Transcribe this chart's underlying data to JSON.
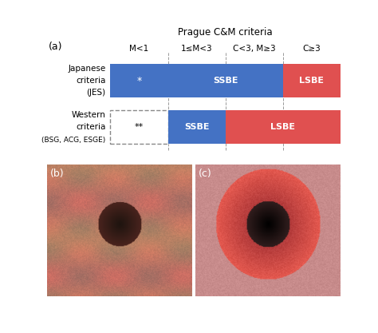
{
  "title": "Prague C&M criteria",
  "panel_a_label": "(a)",
  "panel_b_label": "(b)",
  "panel_c_label": "(c)",
  "col_labels": [
    "M<1",
    "1≤M<3",
    "C<3, M≥3",
    "C≥3"
  ],
  "row1_labels": [
    "Japanese",
    "criteria",
    "(JES)"
  ],
  "row2_labels": [
    "Western",
    "criteria",
    "(BSG, ACG, ESGE)"
  ],
  "blue_color": "#4472C4",
  "red_color": "#E05050",
  "star_row1": "*",
  "star_row2": "**",
  "ssbe": "SSBE",
  "lsbe": "LSBE",
  "title_fontsize": 8.5,
  "label_fontsize": 7.5,
  "bar_fontsize": 8.0,
  "small_label_fontsize": 6.5
}
